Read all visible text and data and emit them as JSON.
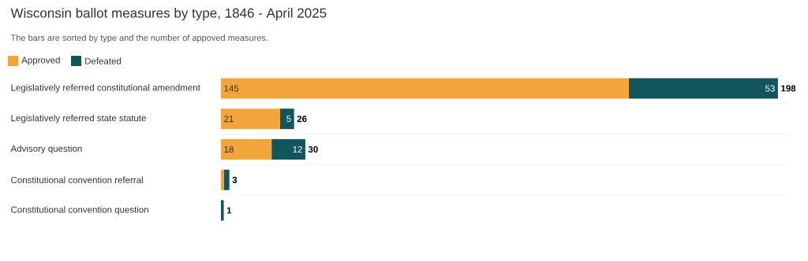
{
  "chart_data": {
    "type": "bar",
    "orientation": "horizontal",
    "stacked": true,
    "title": "Wisconsin ballot measures by type, 1846 - April 2025",
    "subtitle": "The bars are sorted by type and the number of appoved measures.",
    "categories": [
      "Legislatively referred constitutional amendment",
      "Legislatively referred state statute",
      "Advisory question",
      "Constitutional convention referral",
      "Constitutional convention question"
    ],
    "series": [
      {
        "name": "Approved",
        "color": "#f2a53a",
        "values": [
          145,
          21,
          18,
          1,
          0
        ],
        "value_labels": [
          "145",
          "21",
          "18",
          null,
          null
        ]
      },
      {
        "name": "Defeated",
        "color": "#12555c",
        "values": [
          53,
          5,
          12,
          2,
          1
        ],
        "value_labels": [
          "53",
          "5",
          "12",
          null,
          null
        ]
      }
    ],
    "totals": [
      "198",
      "26",
      "30",
      "3",
      "1"
    ],
    "legend": "top left",
    "grid": "y"
  }
}
